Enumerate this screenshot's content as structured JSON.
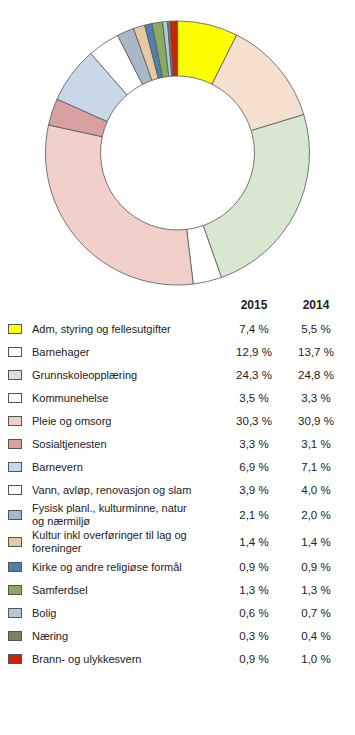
{
  "chart_data": [
    {
      "type": "pie",
      "values": [
        7.4,
        12.9,
        24.3,
        3.5,
        30.3,
        3.3,
        6.9,
        3.9,
        2.1,
        1.4,
        0.9,
        1.3,
        0.6,
        0.3,
        0.9
      ],
      "colors": [
        "#FFFF00",
        "#F5E0D0",
        "#D8E8D0",
        "#FFFFFF",
        "#F0D0C8",
        "#D8A0A0",
        "#C8D8E8",
        "#FFFFFF",
        "#A8B8C8",
        "#E8C8A0",
        "#5080B0",
        "#8AAA60",
        "#B0C8E0",
        "#808060",
        "#CC2200"
      ]
    },
    {
      "type": "table",
      "categories": [
        "Adm, styring og fellesutgifter",
        "Barnehager",
        "Grunnskoleopplæring",
        "Kommunehelse",
        "Pleie og omsorg",
        "Sosialtjenesten",
        "Barnevern",
        "Vann, avløp, renovasjon og slam",
        "Fysisk planl., kulturminne, natur\nog nærmiljø",
        "Kultur inkl overføringer til lag og\nforeninger",
        "Kirke og andre religiøse formål",
        "Samferdsel",
        "Bolig",
        "Næring",
        "Brann- og ulykkesvern"
      ],
      "colors": [
        "#FFFF00",
        "#FFFFFF",
        "#E0E0D8",
        "#FFFFFF",
        "#F0D0C8",
        "#D8A0A0",
        "#C8D8E8",
        "#FFFFFF",
        "#A8B8C8",
        "#E8C8A0",
        "#5080B0",
        "#8AAA60",
        "#B0C8E0",
        "#808060",
        "#CC2200"
      ],
      "series": [
        {
          "name": "2015",
          "values": [
            7.4,
            12.9,
            24.3,
            3.5,
            30.3,
            3.3,
            6.9,
            3.9,
            2.1,
            1.4,
            0.9,
            1.3,
            0.6,
            0.3,
            0.9
          ],
          "value_labels": [
            "7,4 %",
            "12,9 %",
            "24,3 %",
            "3,5 %",
            "30,3 %",
            "3,3 %",
            "6,9 %",
            "3,9 %",
            "2,1 %",
            "1,4 %",
            "0,9 %",
            "1,3 %",
            "0,6 %",
            "0,3 %",
            "0,9 %"
          ]
        },
        {
          "name": "2014",
          "values": [
            5.5,
            13.7,
            24.8,
            3.3,
            30.9,
            3.1,
            7.1,
            4.0,
            2.0,
            1.4,
            0.9,
            1.3,
            0.7,
            0.4,
            1.0
          ],
          "value_labels": [
            "5,5 %",
            "13,7 %",
            "24,8 %",
            "3,3 %",
            "30,9 %",
            "3,1 %",
            "7,1 %",
            "4,0 %",
            "2,0 %",
            "1,4 %",
            "0,9 %",
            "1,3 %",
            "0,7 %",
            "0,4 %",
            "1,0 %"
          ]
        }
      ]
    }
  ]
}
